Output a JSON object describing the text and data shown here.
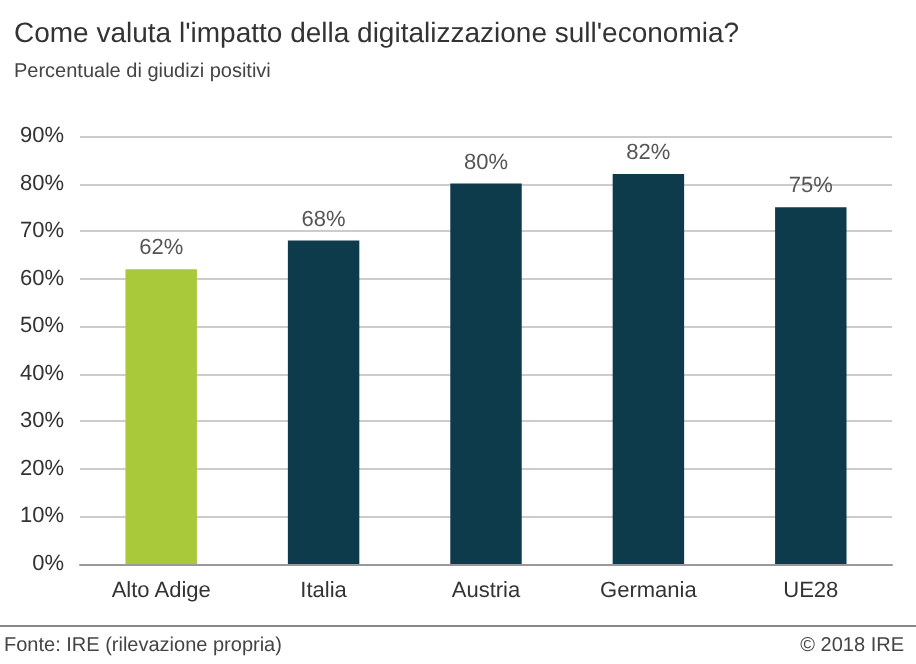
{
  "chart_data": {
    "type": "bar",
    "title": "Come valuta l'impatto della digitalizzazione sull'economia?",
    "subtitle": "Percentuale di giudizi positivi",
    "categories": [
      "Alto Adige",
      "Italia",
      "Austria",
      "Germania",
      "UE28"
    ],
    "values": [
      62,
      68,
      80,
      82,
      75
    ],
    "colors": [
      "#a9c93b",
      "#0e3b4c",
      "#0e3b4c",
      "#0e3b4c",
      "#0e3b4c"
    ],
    "value_labels": [
      "62%",
      "68%",
      "80%",
      "82%",
      "75%"
    ],
    "ylim": [
      0,
      90
    ],
    "yticks": [
      {
        "value": 0,
        "label": "0%"
      },
      {
        "value": 10,
        "label": "10%"
      },
      {
        "value": 20,
        "label": "20%"
      },
      {
        "value": 30,
        "label": "30%"
      },
      {
        "value": 40,
        "label": "40%"
      },
      {
        "value": 50,
        "label": "50%"
      },
      {
        "value": 60,
        "label": "60%"
      },
      {
        "value": 70,
        "label": "70%"
      },
      {
        "value": 80,
        "label": "80%"
      },
      {
        "value": 90,
        "label": "90%"
      }
    ],
    "grid": "y",
    "annotations": [
      "Fonte: IRE (rilevazione propria)",
      "© 2018 IRE"
    ]
  }
}
